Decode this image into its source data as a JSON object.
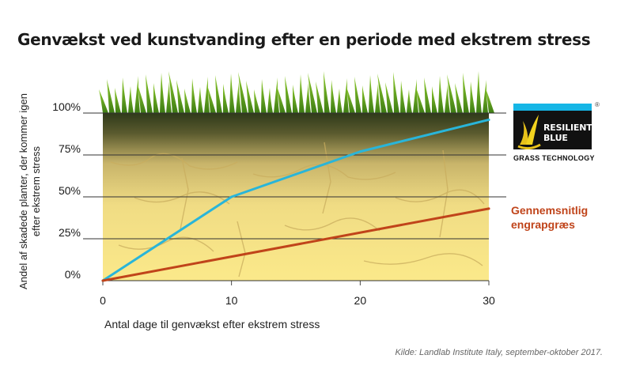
{
  "title": "Genvækst ved kunstvanding efter en periode med ekstrem stress",
  "source": "Kilde: Landlab Institute Italy, september-oktober 2017.",
  "logo": {
    "word1": "RESILIENT",
    "word2": "BLUE",
    "tagline": "GRASS TECHNOLOGY",
    "registered": "®",
    "accent": "#16b6e6"
  },
  "chart_data": {
    "type": "line",
    "xlabel": "Antal dage til genvækst efter ekstrem stress",
    "ylabel": "Andel af skadede planter, der kommer igen efter ekstrem stress",
    "x_ticks": [
      "0",
      "10",
      "20",
      "30"
    ],
    "y_ticks": [
      "0%",
      "25%",
      "50%",
      "75%",
      "100%"
    ],
    "xlim": [
      0,
      30
    ],
    "ylim": [
      0,
      100
    ],
    "grid": "horizontal",
    "series": [
      {
        "color": "#29b5d9",
        "x": [
          0,
          10,
          20,
          30
        ],
        "y": [
          0,
          50,
          77,
          96
        ]
      },
      {
        "name": "Gennemsnitlig engrapgræs",
        "color": "#c0441a",
        "x": [
          0,
          30
        ],
        "y": [
          0,
          43
        ]
      }
    ]
  }
}
